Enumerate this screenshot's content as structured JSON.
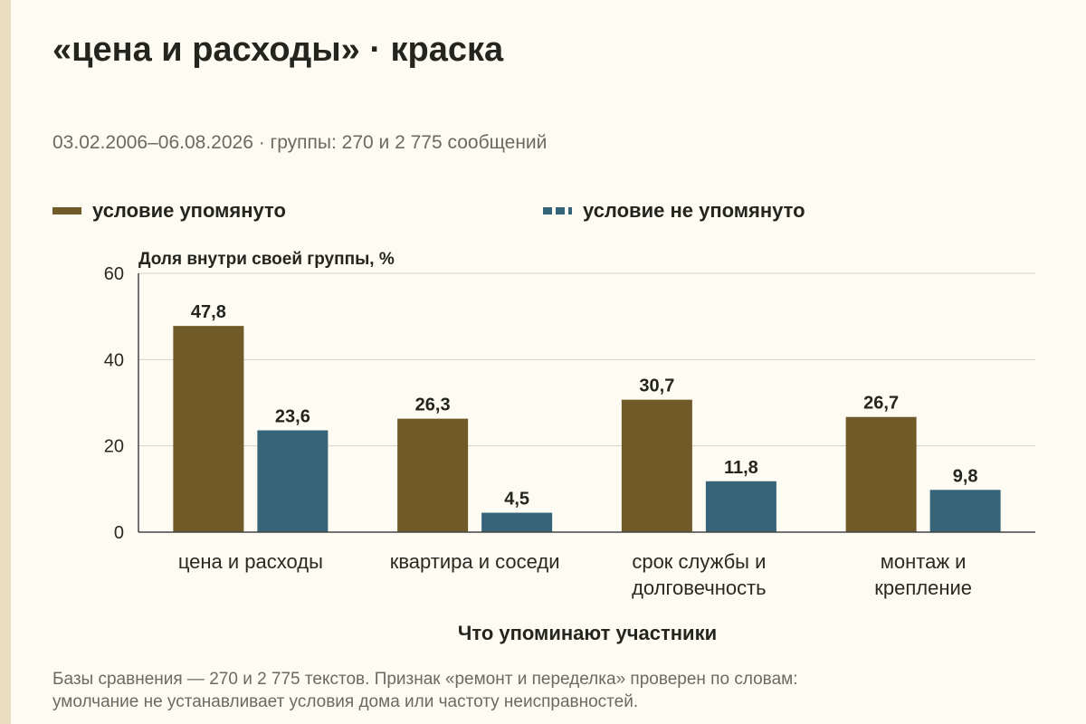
{
  "title": "«цена и расходы» · краска",
  "subtitle": "03.02.2006–06.08.2026 · группы: 270 и 2 775 сообщений",
  "footnote_line1": "Базы сравнения — 270 и 2 775 текстов. Признак «ремонт и переделка» проверен по словам:",
  "footnote_line2": "умолчание не устанавливает условия дома или частоту неисправностей.",
  "colors": {
    "mentioned": "#6f5a28",
    "not_mentioned": "#36657a",
    "background": "#fdfbf2"
  },
  "chart_data": {
    "type": "bar",
    "categories": [
      [
        "цена и расходы"
      ],
      [
        "квартира и соседи"
      ],
      [
        "срок службы и",
        "долговечность"
      ],
      [
        "монтаж и",
        "крепление"
      ]
    ],
    "series": [
      {
        "name": "условие упомянуто",
        "values": [
          47.8,
          26.3,
          30.7,
          26.7
        ],
        "labels": [
          "47,8",
          "26,3",
          "30,7",
          "26,7"
        ]
      },
      {
        "name": "условие не упомянуто",
        "values": [
          23.6,
          4.5,
          11.8,
          9.8
        ],
        "labels": [
          "23,6",
          "4,5",
          "11,8",
          "9,8"
        ]
      }
    ],
    "ylabel": "Доля внутри своей группы, %",
    "xlabel": "Что упоминают участники",
    "ylim": [
      0,
      60
    ],
    "yticks": [
      0,
      20,
      40,
      60
    ],
    "grid": true,
    "legend": "top"
  }
}
